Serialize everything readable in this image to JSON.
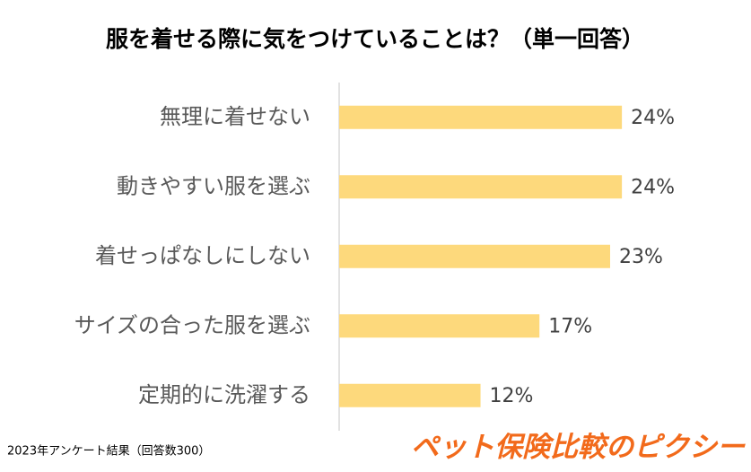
{
  "chart_data": {
    "type": "bar",
    "orientation": "horizontal",
    "title": "服を着せる際に気をつけていることは？（単一回答）",
    "categories": [
      "無理に着せない",
      "動きやすい服を選ぶ",
      "着せっぱなしにしない",
      "サイズの合った服を選ぶ",
      "定期的に洗濯する"
    ],
    "values": [
      24,
      24,
      23,
      17,
      12
    ],
    "value_labels": [
      "24%",
      "24%",
      "23%",
      "17%",
      "12%"
    ],
    "color": "#fdd97c",
    "note": "2023年アンケート結果（回答数300）",
    "brand": "ペット保険比較のピクシー"
  }
}
